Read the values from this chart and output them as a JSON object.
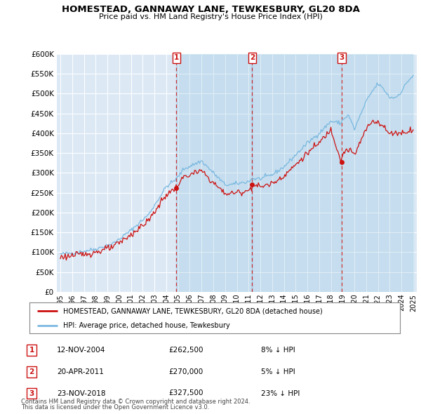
{
  "title": "HOMESTEAD, GANNAWAY LANE, TEWKESBURY, GL20 8DA",
  "subtitle": "Price paid vs. HM Land Registry's House Price Index (HPI)",
  "red_label": "HOMESTEAD, GANNAWAY LANE, TEWKESBURY, GL20 8DA (detached house)",
  "blue_label": "HPI: Average price, detached house, Tewkesbury",
  "sales": [
    {
      "num": 1,
      "date": "12-NOV-2004",
      "price": 262500,
      "pct": "8%",
      "dir": "↓"
    },
    {
      "num": 2,
      "date": "20-APR-2011",
      "price": 270000,
      "pct": "5%",
      "dir": "↓"
    },
    {
      "num": 3,
      "date": "23-NOV-2018",
      "price": 327500,
      "pct": "23%",
      "dir": "↓"
    }
  ],
  "sale_years": [
    2004.87,
    2011.31,
    2018.9
  ],
  "sale_prices": [
    262500,
    270000,
    327500
  ],
  "footnote1": "Contains HM Land Registry data © Crown copyright and database right 2024.",
  "footnote2": "This data is licensed under the Open Government Licence v3.0.",
  "ylim": [
    0,
    600000
  ],
  "yticks": [
    0,
    50000,
    100000,
    150000,
    200000,
    250000,
    300000,
    350000,
    400000,
    450000,
    500000,
    550000,
    600000
  ],
  "background_color": "#dce9f5",
  "hpi_anchors_t": [
    1995.0,
    1996.5,
    1998.0,
    1999.5,
    2001.0,
    2002.5,
    2004.0,
    2004.87,
    2005.5,
    2007.0,
    2008.0,
    2009.0,
    2009.5,
    2011.0,
    2011.31,
    2012.0,
    2013.0,
    2014.0,
    2015.0,
    2016.0,
    2017.0,
    2018.0,
    2018.9,
    2019.0,
    2019.5,
    2020.0,
    2021.0,
    2021.5,
    2022.0,
    2022.5,
    2023.0,
    2023.5,
    2024.0,
    2024.5,
    2025.0
  ],
  "hpi_anchors_v": [
    95000,
    100000,
    108000,
    122000,
    155000,
    195000,
    265000,
    285000,
    310000,
    330000,
    300000,
    270000,
    270000,
    278000,
    285000,
    285000,
    295000,
    315000,
    345000,
    375000,
    400000,
    430000,
    425000,
    435000,
    445000,
    410000,
    480000,
    505000,
    525000,
    510000,
    490000,
    490000,
    505000,
    530000,
    545000
  ],
  "red_anchors_t": [
    1995.0,
    1996.5,
    1998.0,
    1999.5,
    2001.0,
    2002.5,
    2004.0,
    2004.87,
    2005.5,
    2007.0,
    2008.0,
    2009.0,
    2009.5,
    2011.0,
    2011.31,
    2012.0,
    2013.0,
    2014.0,
    2015.0,
    2016.0,
    2017.0,
    2018.0,
    2018.9,
    2019.0,
    2019.5,
    2020.0,
    2021.0,
    2021.5,
    2022.0,
    2022.5,
    2023.0,
    2023.5,
    2024.0,
    2024.5,
    2025.0
  ],
  "red_anchors_v": [
    88000,
    93000,
    100000,
    113000,
    144000,
    180000,
    245000,
    262500,
    290000,
    305000,
    275000,
    248000,
    248000,
    255000,
    270000,
    265000,
    273000,
    293000,
    320000,
    350000,
    375000,
    410000,
    327500,
    350000,
    360000,
    345000,
    410000,
    430000,
    430000,
    415000,
    398000,
    402000,
    400000,
    405000,
    410000
  ],
  "noise_seed_hpi": 42,
  "noise_seed_red": 123,
  "noise_hpi": 2500,
  "noise_red": 4000
}
